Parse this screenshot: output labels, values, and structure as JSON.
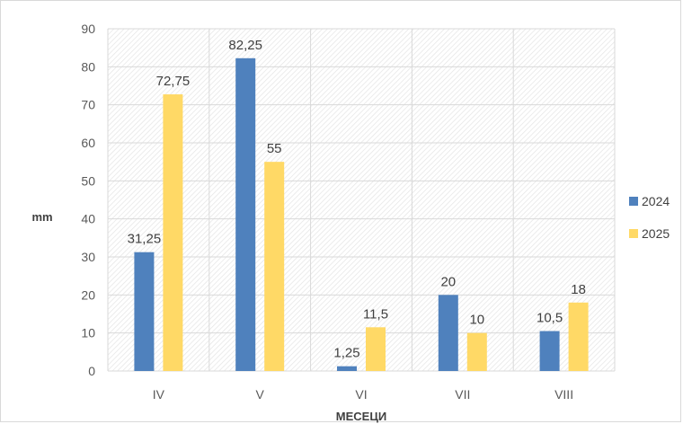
{
  "chart_data": {
    "type": "bar",
    "title": "",
    "xlabel": "МЕСЕЦИ",
    "ylabel": "mm",
    "ylim": [
      0,
      90
    ],
    "yticks": [
      0,
      10,
      20,
      30,
      40,
      50,
      60,
      70,
      80,
      90
    ],
    "categories": [
      "IV",
      "V",
      "VI",
      "VII",
      "VIII"
    ],
    "series": [
      {
        "name": "2024",
        "color": "#4f81bd",
        "values": [
          31.25,
          82.25,
          1.25,
          20,
          10.5
        ],
        "labels": [
          "31,25",
          "82,25",
          "1,25",
          "20",
          "10,5"
        ]
      },
      {
        "name": "2025",
        "color": "#ffd966",
        "values": [
          72.75,
          55,
          11.5,
          10,
          18
        ],
        "labels": [
          "72,75",
          "55",
          "11,5",
          "10",
          "18"
        ]
      }
    ],
    "grid": true,
    "legend": "right"
  }
}
